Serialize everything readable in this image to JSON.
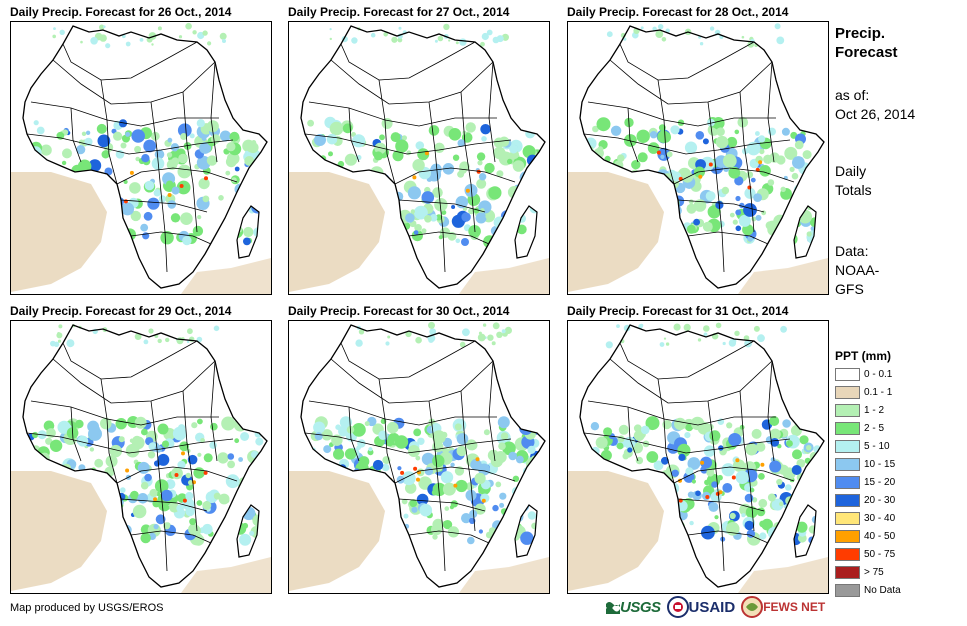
{
  "panels": [
    {
      "title": "Daily Precip. Forecast for 26 Oct., 2014",
      "intensity": 1
    },
    {
      "title": "Daily Precip. Forecast for 27 Oct., 2014",
      "intensity": 2
    },
    {
      "title": "Daily Precip. Forecast for 28 Oct., 2014",
      "intensity": 3
    },
    {
      "title": "Daily Precip. Forecast for 29 Oct., 2014",
      "intensity": 4
    },
    {
      "title": "Daily Precip. Forecast for 30 Oct., 2014",
      "intensity": 5
    },
    {
      "title": "Daily Precip. Forecast for 31 Oct., 2014",
      "intensity": 6
    }
  ],
  "sidebar": {
    "title_line1": "Precip.",
    "title_line2": "Forecast",
    "asof_line1": "as of:",
    "asof_line2": "Oct 26, 2014",
    "totals_line1": "Daily",
    "totals_line2": "Totals",
    "data_line1": "Data:",
    "data_line2": "NOAA-",
    "data_line3": "GFS"
  },
  "legend": {
    "title": "PPT (mm)",
    "items": [
      {
        "label": "0 - 0.1",
        "color": "#ffffff"
      },
      {
        "label": "0.1 - 1",
        "color": "#e8d6b9"
      },
      {
        "label": "1 - 2",
        "color": "#b4f0b4"
      },
      {
        "label": "2 - 5",
        "color": "#78e678"
      },
      {
        "label": "5 - 10",
        "color": "#b4f0f0"
      },
      {
        "label": "10 - 15",
        "color": "#8cc8f0"
      },
      {
        "label": "15 - 20",
        "color": "#508cf0"
      },
      {
        "label": "20 - 30",
        "color": "#1e64dc"
      },
      {
        "label": "30 - 40",
        "color": "#ffe678"
      },
      {
        "label": "40 - 50",
        "color": "#ffa000"
      },
      {
        "label": "50 - 75",
        "color": "#ff3c00"
      },
      {
        "label": "> 75",
        "color": "#aa1e1e"
      },
      {
        "label": "No Data",
        "color": "#999999"
      }
    ]
  },
  "footer": {
    "credit": "Map produced by USGS/EROS",
    "logo_usgs": "USGS",
    "logo_usaid": "USAID",
    "logo_fews": "FEWS NET"
  }
}
